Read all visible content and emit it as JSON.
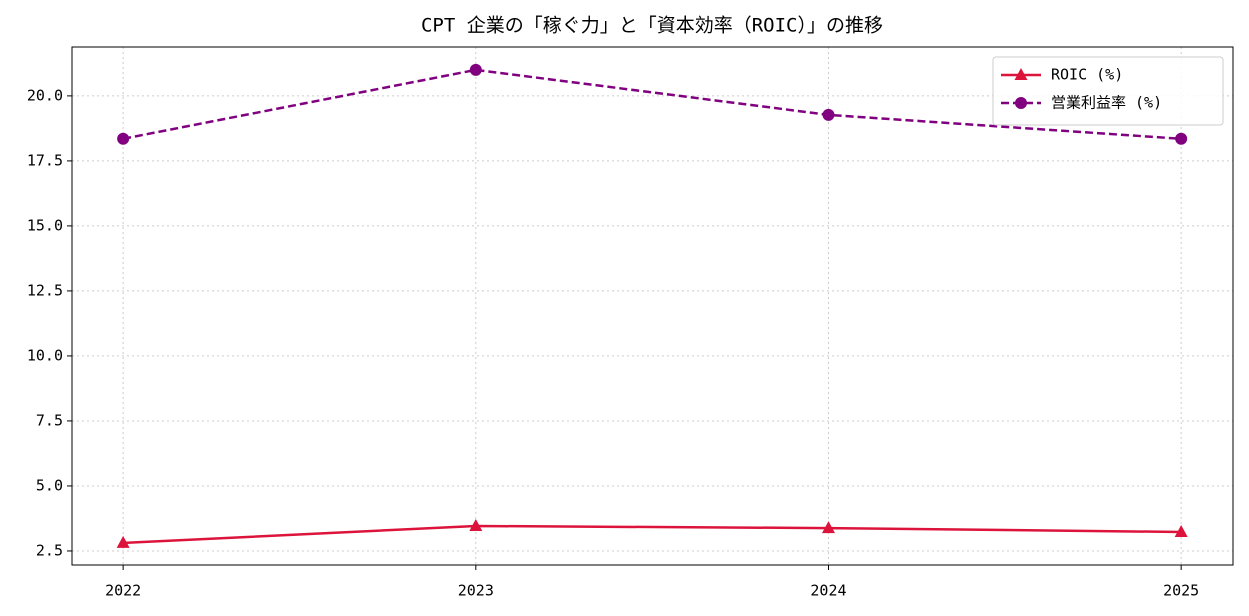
{
  "chart_data": {
    "type": "line",
    "title": "CPT 企業の「稼ぐ力」と「資本効率（ROIC）」の推移",
    "x": [
      2022,
      2023,
      2024,
      2025
    ],
    "series": [
      {
        "name": "ROIC (%)",
        "color": "#dc143c",
        "marker": "triangle",
        "dash": "solid",
        "values": [
          2.81,
          3.46,
          3.38,
          3.23
        ]
      },
      {
        "name": "営業利益率 (%)",
        "color": "#800080",
        "marker": "circle",
        "dash": "dashed",
        "values": [
          18.35,
          21.0,
          19.27,
          18.35
        ]
      }
    ],
    "xlim": [
      2021.855,
      2025.147
    ],
    "xticks": [
      2022,
      2023,
      2024,
      2025
    ],
    "ylim": [
      1.96,
      21.88
    ],
    "yticks": [
      {
        "value": 2.5,
        "label": "2.5"
      },
      {
        "value": 5,
        "label": "5.0"
      },
      {
        "value": 7.5,
        "label": "7.5"
      },
      {
        "value": 10,
        "label": "10.0"
      },
      {
        "value": 12.5,
        "label": "12.5"
      },
      {
        "value": 15,
        "label": "15.0"
      },
      {
        "value": 17.5,
        "label": "17.5"
      },
      {
        "value": 20,
        "label": "20.0"
      }
    ],
    "grid": true,
    "legend": "upper right"
  }
}
